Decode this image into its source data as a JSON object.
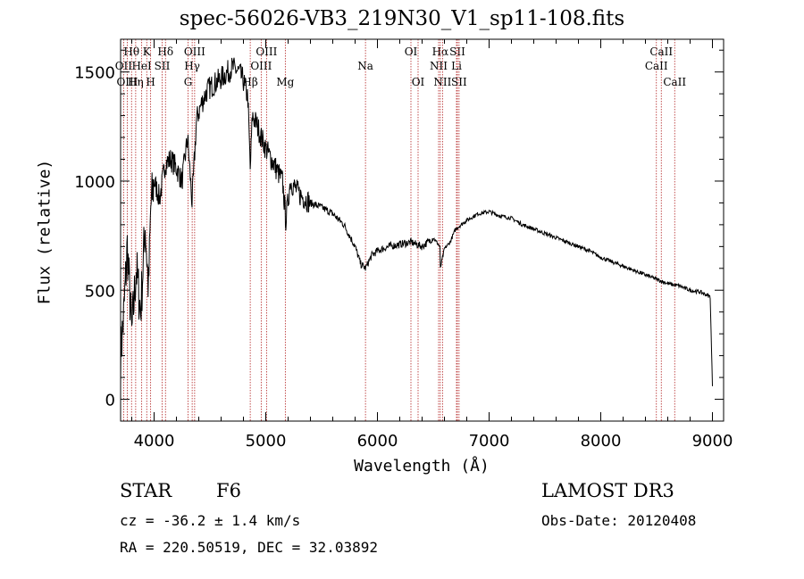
{
  "header": {
    "title": "spec-56026-VB3_219N30_V1_sp11-108.fits"
  },
  "info": {
    "object_class": "STAR",
    "subclass": "F6",
    "survey": "LAMOST DR3",
    "redshift": "cz = -36.2 ± 1.4 km/s",
    "obs_date": "Obs-Date: 20120408",
    "coords": "RA = 220.50519, DEC =  32.03892"
  },
  "chart_data": {
    "type": "line",
    "title": "spec-56026-VB3_219N30_V1_sp11-108.fits",
    "xlabel": "Wavelength (Å)",
    "ylabel": "Flux (relative)",
    "xlim": [
      3700,
      9100
    ],
    "ylim": [
      -100,
      1650
    ],
    "xticks": [
      4000,
      5000,
      6000,
      7000,
      8000,
      9000
    ],
    "yticks": [
      0,
      500,
      1000,
      1500
    ],
    "grid": false,
    "series": [
      {
        "name": "spectrum",
        "x": [
          3700,
          3730,
          3760,
          3800,
          3840,
          3880,
          3920,
          3950,
          3970,
          4000,
          4050,
          4100,
          4150,
          4200,
          4250,
          4300,
          4340,
          4380,
          4420,
          4480,
          4550,
          4620,
          4700,
          4760,
          4800,
          4840,
          4861,
          4880,
          4920,
          4960,
          5000,
          5050,
          5100,
          5150,
          5180,
          5220,
          5300,
          5400,
          5500,
          5600,
          5700,
          5800,
          5850,
          5893,
          5950,
          6000,
          6100,
          6200,
          6300,
          6400,
          6500,
          6560,
          6563,
          6600,
          6650,
          6700,
          6800,
          6900,
          7000,
          7100,
          7200,
          7300,
          7400,
          7500,
          7600,
          7700,
          7800,
          7900,
          8000,
          8100,
          8200,
          8300,
          8400,
          8500,
          8600,
          8700,
          8800,
          8900,
          8980,
          9000
        ],
        "values": [
          200,
          400,
          700,
          300,
          600,
          400,
          800,
          500,
          880,
          1000,
          920,
          1080,
          1100,
          1060,
          1000,
          1200,
          900,
          1280,
          1350,
          1420,
          1450,
          1480,
          1520,
          1500,
          1460,
          1380,
          1050,
          1300,
          1260,
          1200,
          1150,
          1100,
          1050,
          1000,
          820,
          1000,
          940,
          900,
          880,
          850,
          800,
          700,
          620,
          600,
          660,
          680,
          700,
          710,
          720,
          700,
          740,
          700,
          600,
          690,
          720,
          780,
          820,
          850,
          860,
          840,
          830,
          800,
          780,
          760,
          740,
          720,
          700,
          680,
          650,
          630,
          610,
          590,
          570,
          550,
          530,
          520,
          500,
          490,
          470,
          60
        ]
      }
    ],
    "lines": [
      {
        "label": "Hθ",
        "wave": 3798,
        "row": 1
      },
      {
        "label": "OII",
        "wave": 3727,
        "row": 2
      },
      {
        "label": "OIII",
        "wave": 3760,
        "row": 3
      },
      {
        "label": "K",
        "wave": 3934,
        "row": 1
      },
      {
        "label": "HeI",
        "wave": 3889,
        "row": 2
      },
      {
        "label": "Hη",
        "wave": 3835,
        "row": 3
      },
      {
        "label": "Hδ",
        "wave": 4102,
        "row": 1
      },
      {
        "label": "SII",
        "wave": 4072,
        "row": 2
      },
      {
        "label": "H",
        "wave": 3969,
        "row": 3
      },
      {
        "label": "OIII",
        "wave": 4363,
        "row": 1
      },
      {
        "label": "Hγ",
        "wave": 4341,
        "row": 2
      },
      {
        "label": "G",
        "wave": 4304,
        "row": 3
      },
      {
        "label": "OIII",
        "wave": 5007,
        "row": 1
      },
      {
        "label": "OIII",
        "wave": 4959,
        "row": 2
      },
      {
        "label": "Hβ",
        "wave": 4861,
        "row": 3
      },
      {
        "label": "Mg",
        "wave": 5175,
        "row": 3
      },
      {
        "label": "Na",
        "wave": 5893,
        "row": 2
      },
      {
        "label": "OI",
        "wave": 6300,
        "row": 1
      },
      {
        "label": "OI",
        "wave": 6364,
        "row": 3
      },
      {
        "label": "Hα",
        "wave": 6563,
        "row": 1
      },
      {
        "label": "NII",
        "wave": 6548,
        "row": 2
      },
      {
        "label": "NII",
        "wave": 6583,
        "row": 3
      },
      {
        "label": "SII",
        "wave": 6716,
        "row": 1
      },
      {
        "label": "Li",
        "wave": 6708,
        "row": 2
      },
      {
        "label": "SII",
        "wave": 6731,
        "row": 3
      },
      {
        "label": "CaII",
        "wave": 8542,
        "row": 1
      },
      {
        "label": "CaII",
        "wave": 8498,
        "row": 2
      },
      {
        "label": "CaII",
        "wave": 8662,
        "row": 3
      }
    ]
  }
}
